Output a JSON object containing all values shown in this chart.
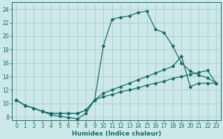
{
  "xlabel": "Humidex (Indice chaleur)",
  "background_color": "#cce8e8",
  "grid_color": "#b0d0d0",
  "line_color": "#1a6b6b",
  "xlim": [
    -0.5,
    23.5
  ],
  "ylim": [
    7.5,
    25.0
  ],
  "xticks": [
    0,
    1,
    2,
    3,
    4,
    5,
    6,
    7,
    8,
    9,
    10,
    11,
    12,
    13,
    14,
    15,
    16,
    17,
    18,
    19,
    20,
    21,
    22,
    23
  ],
  "yticks": [
    8,
    10,
    12,
    14,
    16,
    18,
    20,
    22,
    24
  ],
  "curve1_x": [
    0,
    1,
    2,
    3,
    4,
    5,
    6,
    7,
    8,
    9,
    10,
    11,
    12,
    13,
    14,
    15,
    16,
    17,
    18,
    19,
    20,
    21,
    22,
    23
  ],
  "curve1_y": [
    10.5,
    9.7,
    9.3,
    8.8,
    8.3,
    8.1,
    7.9,
    7.7,
    8.5,
    10.5,
    18.5,
    22.5,
    22.8,
    23.0,
    23.5,
    23.7,
    21.0,
    20.5,
    18.5,
    16.0,
    14.8,
    14.2,
    13.8,
    13.0
  ],
  "curve2_x": [
    0,
    1,
    2,
    3,
    4,
    5,
    6,
    7,
    8,
    9,
    10,
    11,
    12,
    13,
    14,
    15,
    16,
    17,
    18,
    19,
    20,
    21,
    22,
    23
  ],
  "curve2_y": [
    10.5,
    9.7,
    9.3,
    8.8,
    8.5,
    8.5,
    8.5,
    8.5,
    9.0,
    10.5,
    11.5,
    12.0,
    12.5,
    13.0,
    13.5,
    14.0,
    14.5,
    15.0,
    15.5,
    17.0,
    12.5,
    13.0,
    13.0,
    13.0
  ],
  "curve3_x": [
    0,
    1,
    2,
    3,
    4,
    5,
    6,
    7,
    8,
    9,
    10,
    11,
    12,
    13,
    14,
    15,
    16,
    17,
    18,
    19,
    20,
    21,
    22,
    23
  ],
  "curve3_y": [
    10.5,
    9.7,
    9.3,
    8.8,
    8.5,
    8.5,
    8.5,
    8.5,
    9.0,
    10.5,
    11.0,
    11.3,
    11.7,
    12.0,
    12.3,
    12.7,
    13.0,
    13.3,
    13.7,
    14.0,
    14.3,
    14.6,
    14.9,
    13.0
  ]
}
